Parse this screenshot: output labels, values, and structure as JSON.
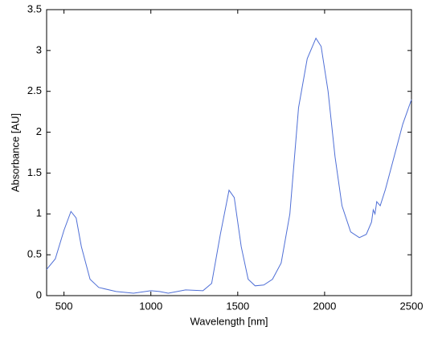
{
  "chart_data": {
    "type": "line",
    "xlabel": "Wavelength [nm]",
    "ylabel": "Absorbance [AU]",
    "x": [
      400,
      450,
      500,
      540,
      570,
      600,
      650,
      700,
      800,
      900,
      1000,
      1050,
      1100,
      1200,
      1300,
      1350,
      1400,
      1450,
      1480,
      1520,
      1560,
      1600,
      1650,
      1700,
      1750,
      1800,
      1850,
      1900,
      1950,
      1980,
      2020,
      2060,
      2100,
      2150,
      2200,
      2240,
      2270,
      2280,
      2290,
      2300,
      2320,
      2350,
      2400,
      2450,
      2500
    ],
    "series": [
      {
        "color": "#4f6fd6",
        "values": [
          0.32,
          0.45,
          0.8,
          1.03,
          0.95,
          0.6,
          0.2,
          0.1,
          0.05,
          0.03,
          0.06,
          0.05,
          0.03,
          0.07,
          0.06,
          0.15,
          0.75,
          1.29,
          1.2,
          0.6,
          0.2,
          0.12,
          0.13,
          0.2,
          0.4,
          1.0,
          2.3,
          2.9,
          3.15,
          3.05,
          2.5,
          1.7,
          1.1,
          0.78,
          0.71,
          0.75,
          0.9,
          1.05,
          1.0,
          1.15,
          1.1,
          1.3,
          1.7,
          2.1,
          2.4
        ]
      }
    ],
    "xlim": [
      400,
      2500
    ],
    "xticks": [
      500,
      1000,
      1500,
      2000,
      2500
    ],
    "ylim": [
      0,
      3.5
    ],
    "yticks": [
      0,
      0.5,
      1,
      1.5,
      2,
      2.5,
      3,
      3.5
    ]
  }
}
